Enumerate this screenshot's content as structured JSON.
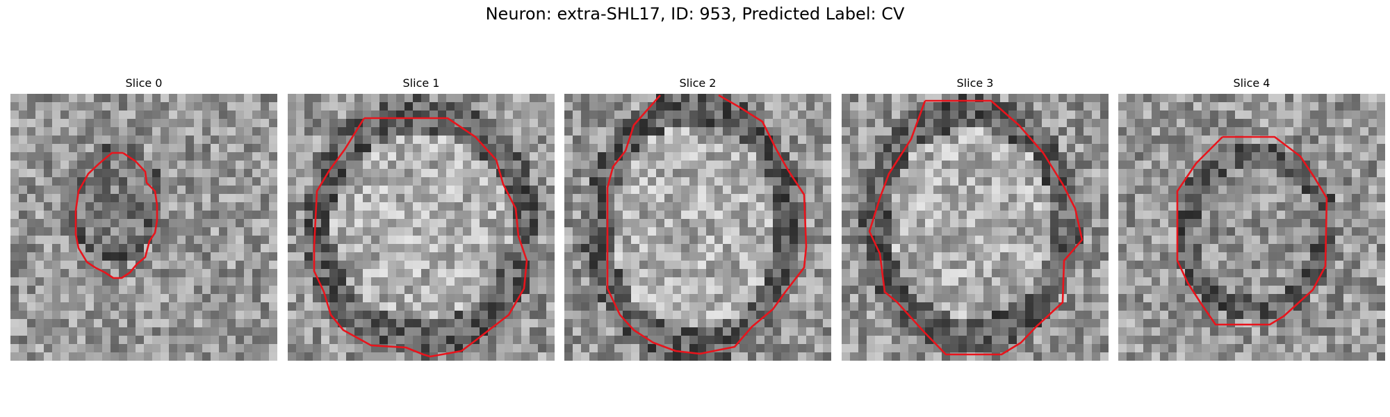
{
  "figure": {
    "title": "Neuron: extra-SHL17, ID: 953, Predicted Label: CV"
  },
  "colors": {
    "contour": "#e8141c"
  },
  "panels": [
    {
      "title": "Slice 0"
    },
    {
      "title": "Slice 1"
    },
    {
      "title": "Slice 2"
    },
    {
      "title": "Slice 3"
    },
    {
      "title": "Slice 4"
    }
  ]
}
